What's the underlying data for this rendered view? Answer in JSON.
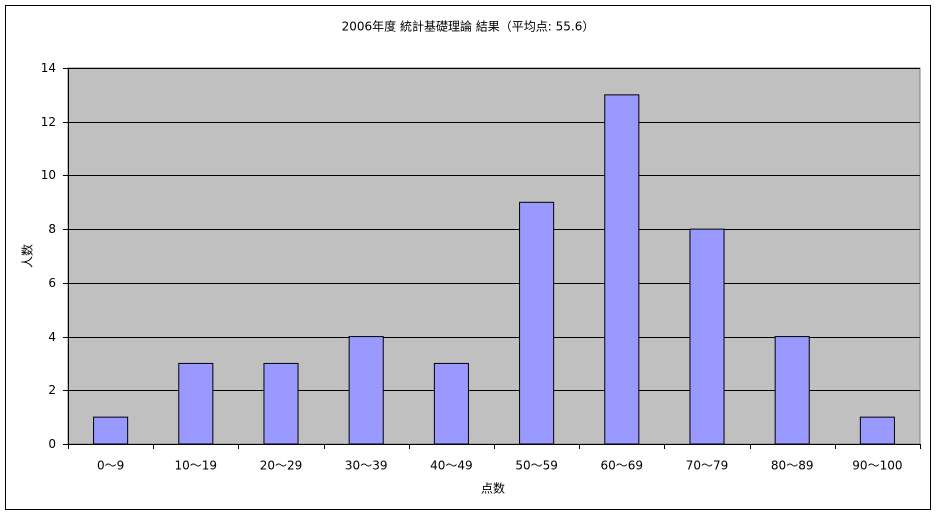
{
  "chart_data": {
    "type": "bar",
    "title": "2006年度 統計基礎理論 結果（平均点: 55.6）",
    "x_label": "点数",
    "y_label": "人数",
    "categories": [
      "0～9",
      "10～19",
      "20～29",
      "30～39",
      "40～49",
      "50～59",
      "60～69",
      "70～79",
      "80～89",
      "90～100"
    ],
    "values": [
      1,
      3,
      3,
      4,
      3,
      9,
      13,
      8,
      4,
      1
    ],
    "color": "#9999ff",
    "ylim": [
      0,
      14
    ],
    "yticks": [
      0,
      2,
      4,
      6,
      8,
      10,
      12,
      14
    ],
    "grid": true
  }
}
